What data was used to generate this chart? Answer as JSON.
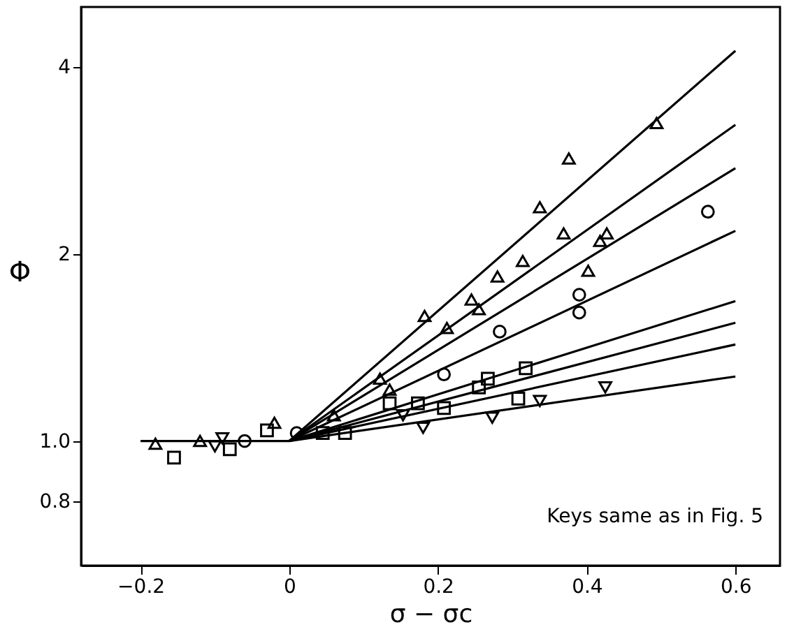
{
  "chart_data": {
    "type": "scatter",
    "xlabel": "σ − σc",
    "ylabel": "Φ",
    "xlim": [
      -0.28,
      0.66
    ],
    "xticks": [
      -0.2,
      0,
      0.2,
      0.4,
      0.6
    ],
    "ylim": [
      0.63,
      5.0
    ],
    "yticks": [
      {
        "value": 0.8,
        "label": "0.8"
      },
      {
        "value": 1,
        "label": "1.0"
      },
      2,
      4
    ],
    "log": "y",
    "grid": false,
    "annotations": [
      "Keys same as in Fig. 5"
    ],
    "series": [
      {
        "type": "line",
        "color": "#000000",
        "x": [
          -0.2,
          0,
          0.6
        ],
        "values": [
          1,
          1,
          4.25
        ]
      },
      {
        "type": "line",
        "color": "#000000",
        "x": [
          0,
          0.6
        ],
        "values": [
          1,
          3.23
        ]
      },
      {
        "type": "line",
        "color": "#000000",
        "x": [
          0,
          0.6
        ],
        "values": [
          1,
          2.75
        ]
      },
      {
        "type": "line",
        "color": "#000000",
        "x": [
          0,
          0.6
        ],
        "values": [
          1,
          2.18
        ]
      },
      {
        "type": "line",
        "color": "#000000",
        "x": [
          0,
          0.6
        ],
        "values": [
          1,
          1.68
        ]
      },
      {
        "type": "line",
        "color": "#000000",
        "x": [
          0,
          0.6
        ],
        "values": [
          1,
          1.55
        ]
      },
      {
        "type": "line",
        "color": "#000000",
        "x": [
          0,
          0.6
        ],
        "values": [
          1,
          1.43
        ]
      },
      {
        "type": "line",
        "color": "#000000",
        "x": [
          0,
          0.6
        ],
        "values": [
          1,
          1.27
        ]
      },
      {
        "marker": "triangle",
        "color": "#000000",
        "x": [
          -0.12,
          0.06,
          0.122,
          0.182,
          0.28,
          0.337,
          0.376,
          0.418,
          0.494
        ],
        "values": [
          1.0,
          1.1,
          1.26,
          1.59,
          1.84,
          2.38,
          2.85,
          2.1,
          3.25
        ]
      },
      {
        "marker": "triangle",
        "color": "#000000",
        "x": [
          -0.18,
          -0.02,
          0.135,
          0.212,
          0.245,
          0.255,
          0.314,
          0.369,
          0.402,
          0.427
        ],
        "values": [
          0.99,
          1.07,
          1.21,
          1.52,
          1.69,
          1.63,
          1.95,
          2.16,
          1.88,
          2.16
        ]
      },
      {
        "marker": "circle",
        "color": "#000000",
        "x": [
          -0.06,
          0.01,
          0.208,
          0.283,
          0.39,
          0.39,
          0.563
        ],
        "values": [
          1.0,
          1.03,
          1.28,
          1.5,
          1.72,
          1.61,
          2.34
        ]
      },
      {
        "marker": "square",
        "color": "#000000",
        "x": [
          -0.08,
          0.173,
          0.255,
          0.308,
          0.318
        ],
        "values": [
          0.97,
          1.15,
          1.22,
          1.17,
          1.31
        ]
      },
      {
        "marker": "square",
        "color": "#000000",
        "x": [
          -0.155,
          -0.03,
          0.045,
          0.075,
          0.135,
          0.208,
          0.267
        ],
        "values": [
          0.94,
          1.04,
          1.03,
          1.03,
          1.15,
          1.13,
          1.26
        ]
      },
      {
        "marker": "triangle-down",
        "color": "#000000",
        "x": [
          -0.1,
          0.153,
          0.18,
          0.273
        ],
        "values": [
          0.98,
          1.1,
          1.05,
          1.09
        ]
      },
      {
        "marker": "triangle-down",
        "color": "#000000",
        "x": [
          -0.09,
          0.337,
          0.425
        ],
        "values": [
          1.01,
          1.16,
          1.22
        ]
      }
    ]
  }
}
